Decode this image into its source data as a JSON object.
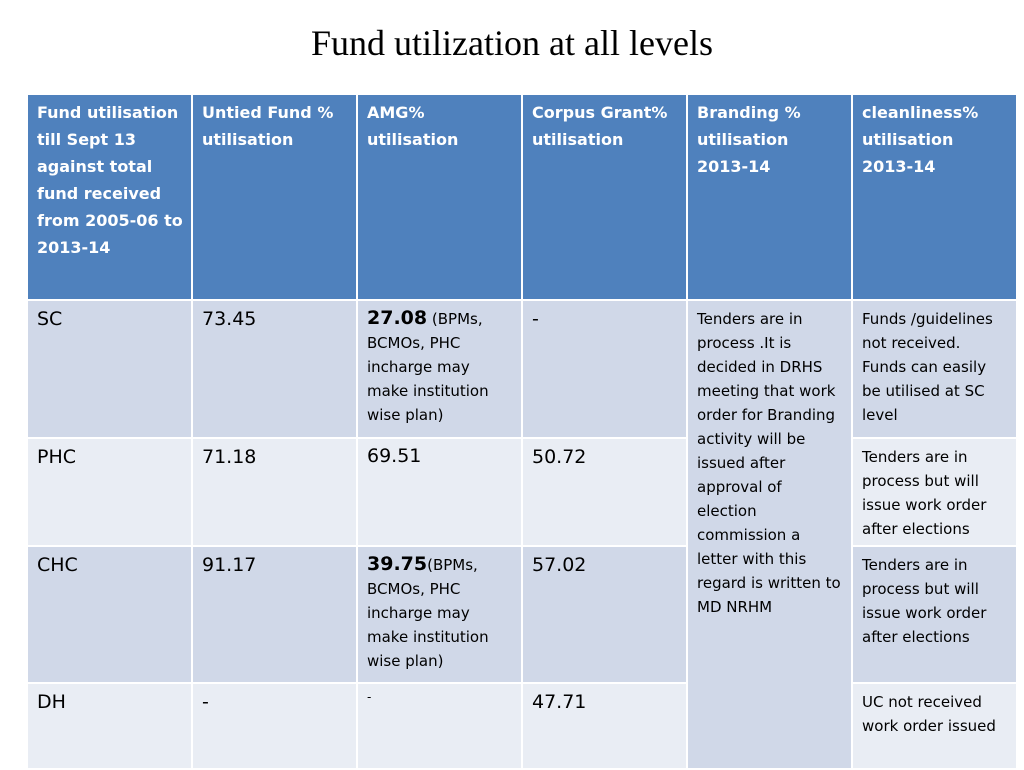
{
  "title": "Fund utilization at all levels",
  "headers": [
    "Fund utilisation till Sept 13 against total fund received from 2005-06 to 2013-14",
    "Untied Fund % utilisation",
    "AMG% utilisation",
    "Corpus Grant% utilisation",
    "Branding % utilisation 2013-14",
    "cleanliness% utilisation 2013-14"
  ],
  "rows": [
    {
      "level": "SC",
      "untied": "73.45",
      "amg_value": "27.08",
      "amg_note": " (BPMs, BCMOs, PHC incharge may make institution wise plan)",
      "corpus": "-",
      "cleanliness": "Funds /guidelines not received. Funds can easily be utilised at SC level"
    },
    {
      "level": "PHC",
      "untied": "71.18",
      "amg_value": "69.51",
      "amg_note": "",
      "corpus": "50.72",
      "cleanliness": "Tenders are in process but will issue work order after elections"
    },
    {
      "level": "CHC",
      "untied": "91.17",
      "amg_value": "39.75",
      "amg_note": "(BPMs, BCMOs, PHC incharge may make institution wise plan)",
      "corpus": "57.02",
      "cleanliness": "Tenders are in process but will issue work order after elections"
    },
    {
      "level": "DH",
      "untied": "-",
      "amg_value": "-",
      "amg_note": "",
      "corpus": "47.71",
      "cleanliness": "UC not received work order issued"
    }
  ],
  "branding_note": "Tenders are in process .It is decided in DRHS meeting that work order for Branding  activity will be issued after approval of election commission a letter with this regard is written to MD NRHM",
  "colors": {
    "header_bg": "#4f81bd",
    "row_dark": "#d0d8e8",
    "row_light": "#e9edf4"
  }
}
